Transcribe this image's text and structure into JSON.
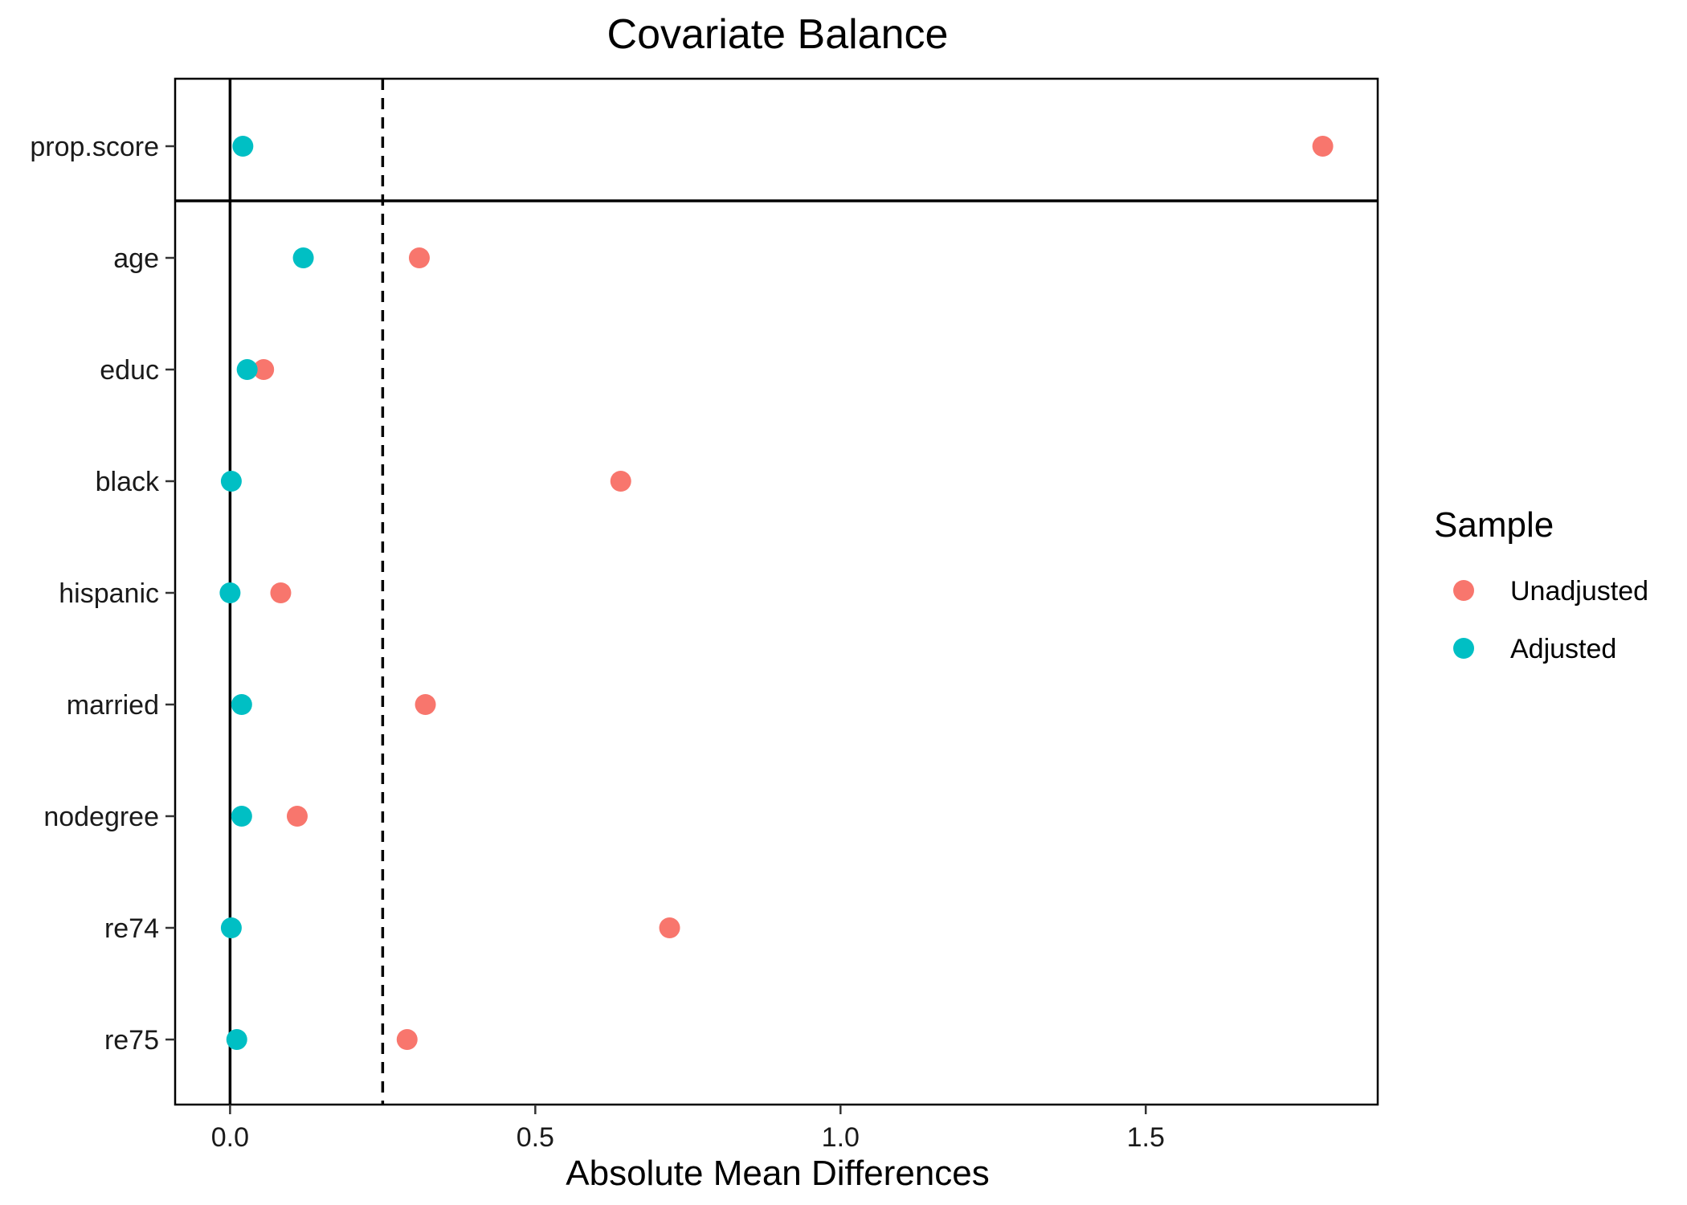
{
  "chart_data": {
    "type": "scatter",
    "title": "Covariate Balance",
    "xlabel": "Absolute Mean Differences",
    "ylabel": "",
    "xlim": [
      -0.09,
      1.88
    ],
    "xticks": [
      0.0,
      0.5,
      1.0,
      1.5
    ],
    "xtick_labels": [
      "0.0",
      "0.5",
      "1.0",
      "1.5"
    ],
    "reference_lines": {
      "solid_x": 0,
      "dashed_x": 0.25
    },
    "categories": [
      "prop.score",
      "age",
      "educ",
      "black",
      "hispanic",
      "married",
      "nodegree",
      "re74",
      "re75"
    ],
    "separator_after_category": "prop.score",
    "grid": false,
    "legend": {
      "title": "Sample",
      "position": "right"
    },
    "series": [
      {
        "name": "Unadjusted",
        "color": "#F8766D",
        "values": [
          1.79,
          0.31,
          0.055,
          0.64,
          0.083,
          0.32,
          0.11,
          0.72,
          0.29
        ]
      },
      {
        "name": "Adjusted",
        "color": "#00BFC4",
        "values": [
          0.021,
          0.12,
          0.028,
          0.002,
          0.0,
          0.019,
          0.019,
          0.002,
          0.011
        ]
      }
    ]
  }
}
